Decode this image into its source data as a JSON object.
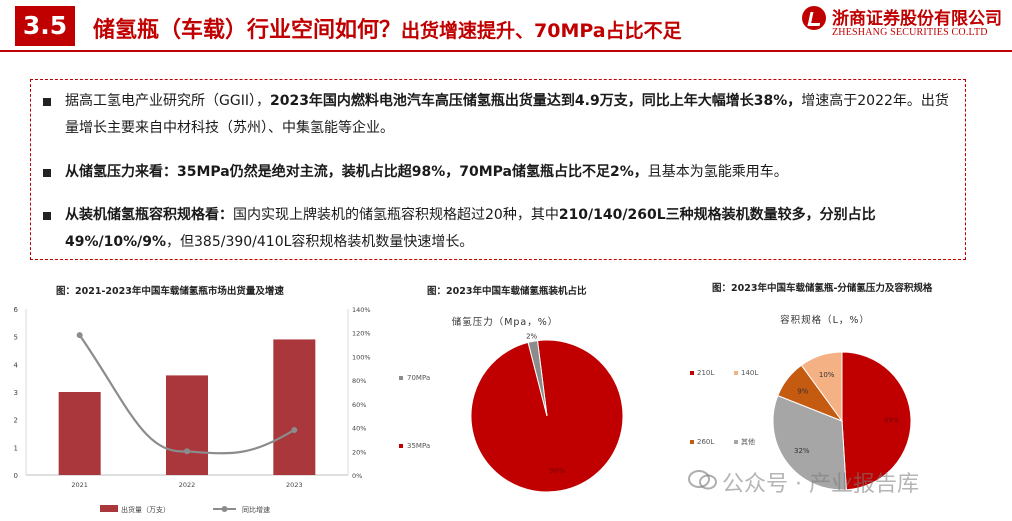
{
  "header": {
    "section_number": "3.5",
    "title_main": "储氢瓶（车载）行业空间如何？",
    "title_sub": "出货增速提升、70MPa占比不足",
    "logo_cn": "浙商证券股份有限公司",
    "logo_en": "ZHESHANG SECURITIES CO.LTD"
  },
  "bullets": [
    {
      "segments": [
        {
          "text": "据高工氢电产业研究所（GGII），",
          "bold": false
        },
        {
          "text": "2023年国内燃料电池汽车高压储氢瓶出货量达到4.9万支，同比上年大幅增长38%，",
          "bold": true
        },
        {
          "text": "增速高于2022年。出货量增长主要来自中材科技（苏州）、中集氢能等企业。",
          "bold": false
        }
      ]
    },
    {
      "segments": [
        {
          "text": "从储氢压力来看：",
          "bold": true
        },
        {
          "text": "35MPa仍然是绝对主流，装机占比超98%，70MPa储氢瓶占比不足2%，",
          "bold": true
        },
        {
          "text": "且基本为氢能乘用车。",
          "bold": false
        }
      ]
    },
    {
      "segments": [
        {
          "text": "从装机储氢瓶容积规格看：",
          "bold": true
        },
        {
          "text": "国内实现上牌装机的储氢瓶容积规格超过20种，其中",
          "bold": false
        },
        {
          "text": "210/140/260L三种规格装机数量较多，分别占比49%/10%/9%",
          "bold": true
        },
        {
          "text": "，但385/390/410L容积规格装机数量快速增长。",
          "bold": false
        }
      ]
    }
  ],
  "charts": {
    "bar_line_title": "图：2021-2023年中国车载储氢瓶市场出货量及增速",
    "pie1_title": "图：2023年中国车载储氢瓶装机占比",
    "pie2_title": "图：2023年中国车载储氢瓶-分储氢压力及容积规格"
  },
  "chart_data": [
    {
      "type": "bar",
      "title": "图：2021-2023年中国车载储氢瓶市场出货量及增速",
      "categories": [
        "2021",
        "2022",
        "2023"
      ],
      "series": [
        {
          "name": "出货量（万支）",
          "type": "bar",
          "axis": "left",
          "values": [
            3.0,
            3.6,
            4.9
          ],
          "color": "#a9373b"
        },
        {
          "name": "同比增速",
          "type": "line",
          "axis": "right",
          "values": [
            118,
            20,
            38
          ],
          "unit": "%",
          "color": "#8c8c8c"
        }
      ],
      "ylim": [
        0,
        6
      ],
      "y_ticks": [
        "0",
        "1",
        "2",
        "3",
        "4",
        "5",
        "6"
      ],
      "y2lim": [
        0,
        140
      ],
      "y2_ticks": [
        "0%",
        "20%",
        "40%",
        "60%",
        "80%",
        "100%",
        "120%",
        "140%"
      ],
      "legend_position": "bottom"
    },
    {
      "type": "pie",
      "title": "储氢压力（Mpa，%）",
      "slices": [
        {
          "label": "35MPa",
          "value": 98,
          "value_label": "98%",
          "color": "#c00000"
        },
        {
          "label": "70MPa",
          "value": 2,
          "value_label": "2%",
          "color": "#8c8c8c"
        }
      ],
      "legend_position": "left"
    },
    {
      "type": "pie",
      "title": "容积规格（L，%）",
      "slices": [
        {
          "label": "210L",
          "value": 49,
          "value_label": "49%",
          "color": "#c00000"
        },
        {
          "label": "其他",
          "value": 32,
          "value_label": "32%",
          "color": "#a6a6a6"
        },
        {
          "label": "260L",
          "value": 9,
          "value_label": "9%",
          "color": "#c55a11"
        },
        {
          "label": "140L",
          "value": 10,
          "value_label": "10%",
          "color": "#f4b183"
        }
      ],
      "legend_position": "left"
    }
  ],
  "watermark": "公众号 · 产业报告库"
}
